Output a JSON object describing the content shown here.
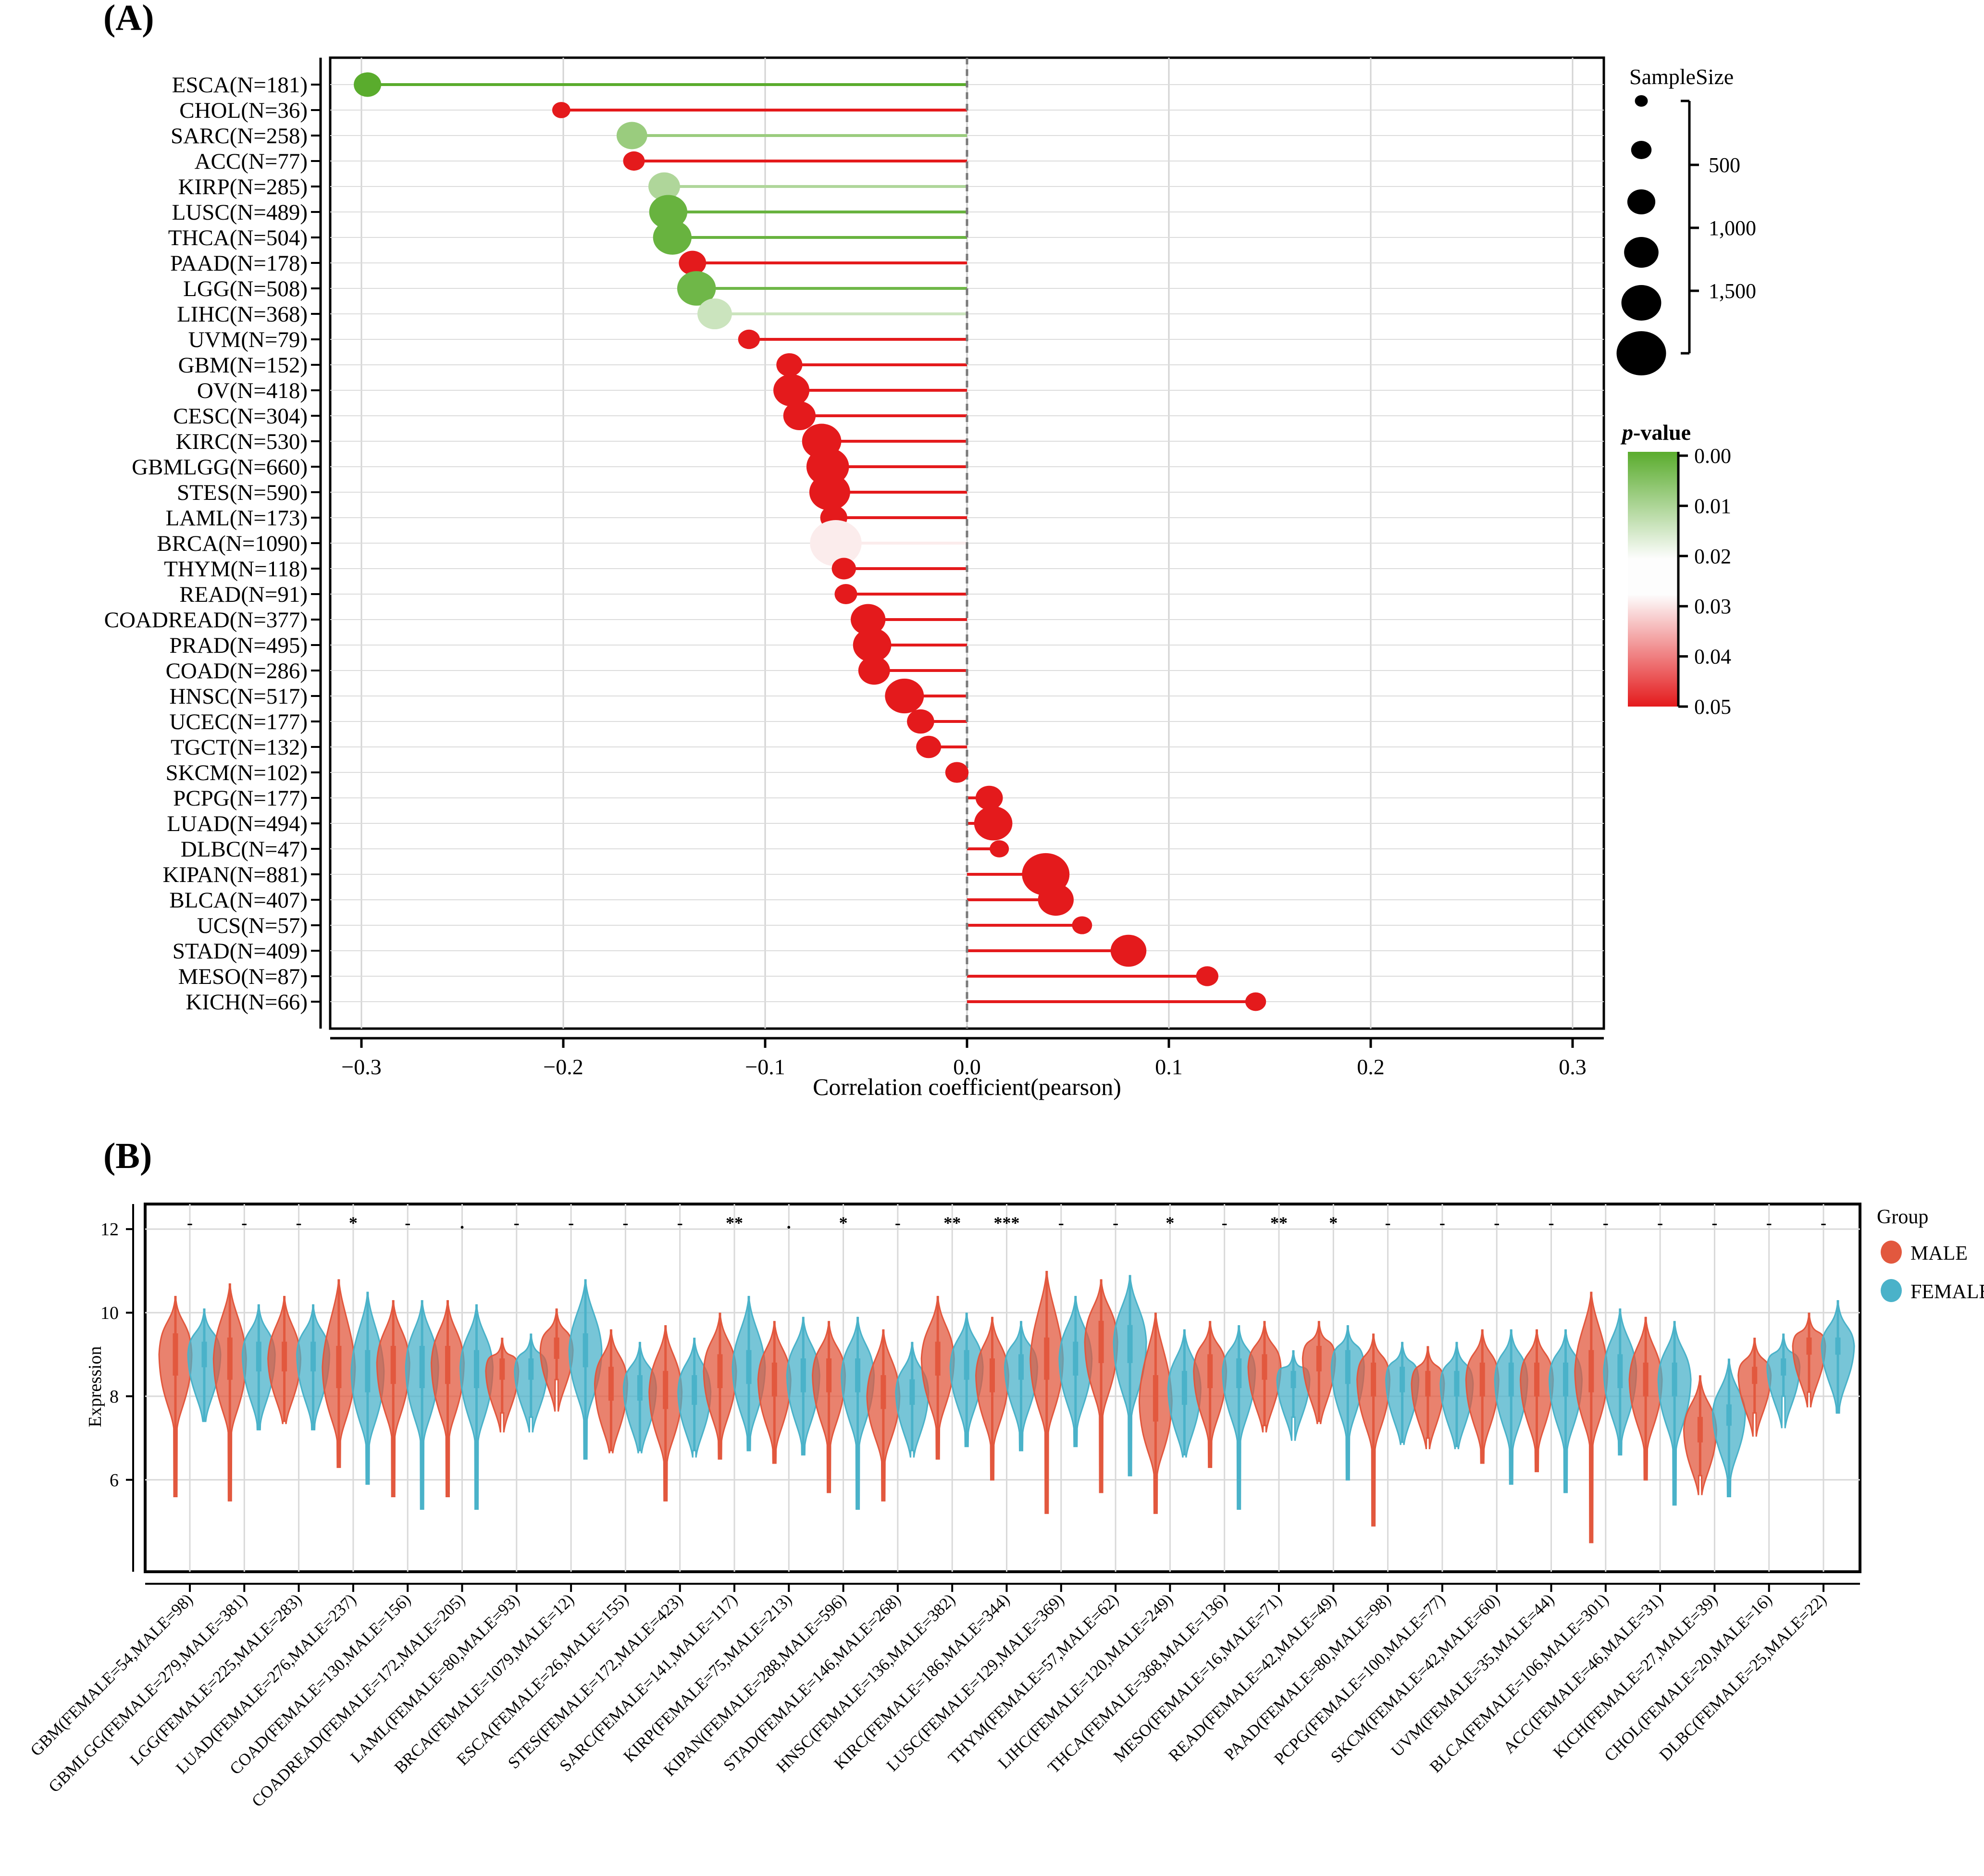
{
  "panels": {
    "a_label": "(A)",
    "b_label": "(B)"
  },
  "chart_data": [
    {
      "type": "scatter",
      "subtype": "lollipop",
      "panel": "(A)",
      "xlabel": "Correlation coefficient(pearson)",
      "xlim": [
        -0.31,
        0.32
      ],
      "xticks": [
        -0.3,
        -0.2,
        -0.1,
        0.0,
        0.1,
        0.2,
        0.3
      ],
      "xtick_labels": [
        "−0.3",
        "−0.2",
        "−0.1",
        "0.0",
        "0.1",
        "0.2",
        "0.3"
      ],
      "grid": true,
      "reference_line": 0.0,
      "legend_placement": "right",
      "size_legend": {
        "title": "SampleSize",
        "tick_labels": [
          "500",
          "1,000",
          "1,500"
        ]
      },
      "color_legend": {
        "title_symbol": "p",
        "title_text": "-value",
        "tick_labels": [
          "0.00",
          "0.01",
          "0.02",
          "0.03",
          "0.04",
          "0.05"
        ],
        "low_color": "#5aac2d",
        "mid_color": "#fdfdfd",
        "high_color": "#e41a1c"
      },
      "points": [
        {
          "label": "ESCA(N=181)",
          "n": 181,
          "r": -0.297,
          "p": 0.0
        },
        {
          "label": "CHOL(N=36)",
          "n": 36,
          "r": -0.201,
          "p": 0.05
        },
        {
          "label": "SARC(N=258)",
          "n": 258,
          "r": -0.166,
          "p": 0.009
        },
        {
          "label": "ACC(N=77)",
          "n": 77,
          "r": -0.165,
          "p": 0.05
        },
        {
          "label": "KIRP(N=285)",
          "n": 285,
          "r": -0.15,
          "p": 0.012
        },
        {
          "label": "LUSC(N=489)",
          "n": 489,
          "r": -0.148,
          "p": 0.002
        },
        {
          "label": "THCA(N=504)",
          "n": 504,
          "r": -0.146,
          "p": 0.002
        },
        {
          "label": "PAAD(N=178)",
          "n": 178,
          "r": -0.136,
          "p": 0.05
        },
        {
          "label": "LGG(N=508)",
          "n": 508,
          "r": -0.134,
          "p": 0.003
        },
        {
          "label": "LIHC(N=368)",
          "n": 368,
          "r": -0.125,
          "p": 0.016
        },
        {
          "label": "UVM(N=79)",
          "n": 79,
          "r": -0.108,
          "p": 0.05
        },
        {
          "label": "GBM(N=152)",
          "n": 152,
          "r": -0.088,
          "p": 0.05
        },
        {
          "label": "OV(N=418)",
          "n": 418,
          "r": -0.087,
          "p": 0.05
        },
        {
          "label": "CESC(N=304)",
          "n": 304,
          "r": -0.083,
          "p": 0.05
        },
        {
          "label": "KIRC(N=530)",
          "n": 530,
          "r": -0.072,
          "p": 0.05
        },
        {
          "label": "GBMLGG(N=660)",
          "n": 660,
          "r": -0.069,
          "p": 0.05
        },
        {
          "label": "STES(N=590)",
          "n": 590,
          "r": -0.068,
          "p": 0.05
        },
        {
          "label": "LAML(N=173)",
          "n": 173,
          "r": -0.066,
          "p": 0.05
        },
        {
          "label": "BRCA(N=1090)",
          "n": 1090,
          "r": -0.065,
          "p": 0.025
        },
        {
          "label": "THYM(N=118)",
          "n": 118,
          "r": -0.061,
          "p": 0.05
        },
        {
          "label": "READ(N=91)",
          "n": 91,
          "r": -0.06,
          "p": 0.05
        },
        {
          "label": "COADREAD(N=377)",
          "n": 377,
          "r": -0.049,
          "p": 0.05
        },
        {
          "label": "PRAD(N=495)",
          "n": 495,
          "r": -0.047,
          "p": 0.05
        },
        {
          "label": "COAD(N=286)",
          "n": 286,
          "r": -0.046,
          "p": 0.05
        },
        {
          "label": "HNSC(N=517)",
          "n": 517,
          "r": -0.031,
          "p": 0.05
        },
        {
          "label": "UCEC(N=177)",
          "n": 177,
          "r": -0.023,
          "p": 0.05
        },
        {
          "label": "TGCT(N=132)",
          "n": 132,
          "r": -0.019,
          "p": 0.05
        },
        {
          "label": "SKCM(N=102)",
          "n": 102,
          "r": -0.005,
          "p": 0.05
        },
        {
          "label": "PCPG(N=177)",
          "n": 177,
          "r": 0.011,
          "p": 0.05
        },
        {
          "label": "LUAD(N=494)",
          "n": 494,
          "r": 0.013,
          "p": 0.05
        },
        {
          "label": "DLBC(N=47)",
          "n": 47,
          "r": 0.016,
          "p": 0.05
        },
        {
          "label": "KIPAN(N=881)",
          "n": 881,
          "r": 0.039,
          "p": 0.05
        },
        {
          "label": "BLCA(N=407)",
          "n": 407,
          "r": 0.044,
          "p": 0.05
        },
        {
          "label": "UCS(N=57)",
          "n": 57,
          "r": 0.057,
          "p": 0.05
        },
        {
          "label": "STAD(N=409)",
          "n": 409,
          "r": 0.08,
          "p": 0.05
        },
        {
          "label": "MESO(N=87)",
          "n": 87,
          "r": 0.119,
          "p": 0.05
        },
        {
          "label": "KICH(N=66)",
          "n": 66,
          "r": 0.143,
          "p": 0.05
        }
      ]
    },
    {
      "type": "violin",
      "panel": "(B)",
      "ylabel": "Expression",
      "ylim": [
        3.8,
        12.6
      ],
      "yticks": [
        6,
        8,
        10,
        12
      ],
      "grid": true,
      "legend_placement": "right",
      "legend": {
        "title": "Group",
        "series": [
          {
            "name": "MALE",
            "color": "#e2583e"
          },
          {
            "name": "FEMALE",
            "color": "#4ab2c9"
          }
        ]
      },
      "groups": [
        {
          "label": "GBM(FEMALE=54,MALE=98)",
          "sig": "-",
          "male": {
            "median": 9.0,
            "min": 5.6,
            "max": 10.4,
            "q1": 8.5,
            "q3": 9.5
          },
          "female": {
            "median": 9.0,
            "min": 7.4,
            "max": 10.1,
            "q1": 8.7,
            "q3": 9.3
          }
        },
        {
          "label": "GBMLGG(FEMALE=279,MALE=381)",
          "sig": "-",
          "male": {
            "median": 8.9,
            "min": 5.5,
            "max": 10.7,
            "q1": 8.4,
            "q3": 9.4
          },
          "female": {
            "median": 9.0,
            "min": 7.2,
            "max": 10.2,
            "q1": 8.6,
            "q3": 9.3
          }
        },
        {
          "label": "LGG(FEMALE=225,MALE=283)",
          "sig": "-",
          "male": {
            "median": 8.9,
            "min": 7.4,
            "max": 10.4,
            "q1": 8.6,
            "q3": 9.3
          },
          "female": {
            "median": 9.0,
            "min": 7.2,
            "max": 10.2,
            "q1": 8.6,
            "q3": 9.3
          }
        },
        {
          "label": "LUAD(FEMALE=276,MALE=237)",
          "sig": "*",
          "male": {
            "median": 8.7,
            "min": 6.3,
            "max": 10.8,
            "q1": 8.2,
            "q3": 9.2
          },
          "female": {
            "median": 8.6,
            "min": 5.9,
            "max": 10.5,
            "q1": 8.1,
            "q3": 9.1
          }
        },
        {
          "label": "COAD(FEMALE=130,MALE=156)",
          "sig": "-",
          "male": {
            "median": 8.8,
            "min": 5.6,
            "max": 10.3,
            "q1": 8.3,
            "q3": 9.2
          },
          "female": {
            "median": 8.7,
            "min": 5.3,
            "max": 10.3,
            "q1": 8.2,
            "q3": 9.2
          }
        },
        {
          "label": "COADREAD(FEMALE=172,MALE=205)",
          "sig": ".",
          "male": {
            "median": 8.8,
            "min": 5.6,
            "max": 10.3,
            "q1": 8.3,
            "q3": 9.2
          },
          "female": {
            "median": 8.7,
            "min": 5.3,
            "max": 10.2,
            "q1": 8.2,
            "q3": 9.1
          }
        },
        {
          "label": "LAML(FEMALE=80,MALE=93)",
          "sig": "-",
          "male": {
            "median": 8.6,
            "min": 7.6,
            "max": 9.4,
            "q1": 8.4,
            "q3": 8.9
          },
          "female": {
            "median": 8.6,
            "min": 7.5,
            "max": 9.5,
            "q1": 8.4,
            "q3": 8.9
          }
        },
        {
          "label": "BRCA(FEMALE=1079,MALE=12)",
          "sig": "-",
          "male": {
            "median": 9.1,
            "min": 8.4,
            "max": 10.1,
            "q1": 8.9,
            "q3": 9.4
          },
          "female": {
            "median": 9.1,
            "min": 6.5,
            "max": 10.8,
            "q1": 8.7,
            "q3": 9.5
          }
        },
        {
          "label": "ESCA(FEMALE=26,MALE=155)",
          "sig": "-",
          "male": {
            "median": 8.3,
            "min": 6.7,
            "max": 9.6,
            "q1": 7.9,
            "q3": 8.7
          },
          "female": {
            "median": 8.2,
            "min": 6.7,
            "max": 9.3,
            "q1": 7.9,
            "q3": 8.5
          }
        },
        {
          "label": "STES(FEMALE=172,MALE=423)",
          "sig": "-",
          "male": {
            "median": 8.1,
            "min": 5.5,
            "max": 9.7,
            "q1": 7.7,
            "q3": 8.6
          },
          "female": {
            "median": 8.1,
            "min": 6.7,
            "max": 9.4,
            "q1": 7.8,
            "q3": 8.5
          }
        },
        {
          "label": "SARC(FEMALE=141,MALE=117)",
          "sig": "**",
          "male": {
            "median": 8.6,
            "min": 6.5,
            "max": 10.0,
            "q1": 8.2,
            "q3": 9.0
          },
          "female": {
            "median": 8.7,
            "min": 6.7,
            "max": 10.4,
            "q1": 8.3,
            "q3": 9.1
          }
        },
        {
          "label": "KIRP(FEMALE=75,MALE=213)",
          "sig": ".",
          "male": {
            "median": 8.4,
            "min": 6.4,
            "max": 9.8,
            "q1": 8.0,
            "q3": 8.8
          },
          "female": {
            "median": 8.5,
            "min": 6.6,
            "max": 9.9,
            "q1": 8.1,
            "q3": 8.9
          }
        },
        {
          "label": "KIPAN(FEMALE=288,MALE=596)",
          "sig": "*",
          "male": {
            "median": 8.5,
            "min": 5.7,
            "max": 9.8,
            "q1": 8.1,
            "q3": 8.9
          },
          "female": {
            "median": 8.5,
            "min": 5.3,
            "max": 9.9,
            "q1": 8.1,
            "q3": 8.9
          }
        },
        {
          "label": "STAD(FEMALE=146,MALE=268)",
          "sig": "-",
          "male": {
            "median": 8.0,
            "min": 5.5,
            "max": 9.6,
            "q1": 7.7,
            "q3": 8.5
          },
          "female": {
            "median": 8.1,
            "min": 6.7,
            "max": 9.3,
            "q1": 7.8,
            "q3": 8.4
          }
        },
        {
          "label": "HNSC(FEMALE=136,MALE=382)",
          "sig": "**",
          "male": {
            "median": 8.9,
            "min": 6.5,
            "max": 10.4,
            "q1": 8.5,
            "q3": 9.3
          },
          "female": {
            "median": 8.7,
            "min": 6.8,
            "max": 10.0,
            "q1": 8.4,
            "q3": 9.1
          }
        },
        {
          "label": "KIRC(FEMALE=186,MALE=344)",
          "sig": "***",
          "male": {
            "median": 8.5,
            "min": 6.0,
            "max": 9.9,
            "q1": 8.1,
            "q3": 8.9
          },
          "female": {
            "median": 8.7,
            "min": 6.7,
            "max": 9.8,
            "q1": 8.4,
            "q3": 9.0
          }
        },
        {
          "label": "LUSC(FEMALE=129,MALE=369)",
          "sig": "-",
          "male": {
            "median": 8.9,
            "min": 5.2,
            "max": 11.0,
            "q1": 8.4,
            "q3": 9.4
          },
          "female": {
            "median": 8.9,
            "min": 6.8,
            "max": 10.4,
            "q1": 8.5,
            "q3": 9.3
          }
        },
        {
          "label": "THYM(FEMALE=57,MALE=62)",
          "sig": "-",
          "male": {
            "median": 9.3,
            "min": 5.7,
            "max": 10.8,
            "q1": 8.8,
            "q3": 9.8
          },
          "female": {
            "median": 9.3,
            "min": 6.1,
            "max": 10.9,
            "q1": 8.8,
            "q3": 9.7
          }
        },
        {
          "label": "LIHC(FEMALE=120,MALE=249)",
          "sig": "*",
          "male": {
            "median": 7.9,
            "min": 5.2,
            "max": 10.0,
            "q1": 7.4,
            "q3": 8.5
          },
          "female": {
            "median": 8.2,
            "min": 6.6,
            "max": 9.6,
            "q1": 7.8,
            "q3": 8.6
          }
        },
        {
          "label": "THCA(FEMALE=368,MALE=136)",
          "sig": "-",
          "male": {
            "median": 8.6,
            "min": 6.3,
            "max": 9.8,
            "q1": 8.2,
            "q3": 9.0
          },
          "female": {
            "median": 8.6,
            "min": 5.3,
            "max": 9.7,
            "q1": 8.2,
            "q3": 8.9
          }
        },
        {
          "label": "MESO(FEMALE=16,MALE=71)",
          "sig": "**",
          "male": {
            "median": 8.7,
            "min": 7.3,
            "max": 9.8,
            "q1": 8.4,
            "q3": 9.0
          },
          "female": {
            "median": 8.4,
            "min": 7.5,
            "max": 9.1,
            "q1": 8.2,
            "q3": 8.6
          }
        },
        {
          "label": "READ(FEMALE=42,MALE=49)",
          "sig": "*",
          "male": {
            "median": 8.9,
            "min": 7.4,
            "max": 9.8,
            "q1": 8.6,
            "q3": 9.2
          },
          "female": {
            "median": 8.7,
            "min": 6.0,
            "max": 9.7,
            "q1": 8.3,
            "q3": 9.1
          }
        },
        {
          "label": "PAAD(FEMALE=80,MALE=98)",
          "sig": "-",
          "male": {
            "median": 8.4,
            "min": 4.9,
            "max": 9.5,
            "q1": 8.0,
            "q3": 8.8
          },
          "female": {
            "median": 8.4,
            "min": 6.9,
            "max": 9.3,
            "q1": 8.1,
            "q3": 8.7
          }
        },
        {
          "label": "PCPG(FEMALE=100,MALE=77)",
          "sig": "-",
          "male": {
            "median": 8.3,
            "min": 7.0,
            "max": 9.2,
            "q1": 8.0,
            "q3": 8.6
          },
          "female": {
            "median": 8.3,
            "min": 6.8,
            "max": 9.3,
            "q1": 8.0,
            "q3": 8.6
          }
        },
        {
          "label": "SKCM(FEMALE=42,MALE=60)",
          "sig": "-",
          "male": {
            "median": 8.4,
            "min": 6.4,
            "max": 9.6,
            "q1": 8.0,
            "q3": 8.8
          },
          "female": {
            "median": 8.4,
            "min": 5.9,
            "max": 9.6,
            "q1": 8.0,
            "q3": 8.8
          }
        },
        {
          "label": "UVM(FEMALE=35,MALE=44)",
          "sig": "-",
          "male": {
            "median": 8.4,
            "min": 6.2,
            "max": 9.6,
            "q1": 8.0,
            "q3": 8.8
          },
          "female": {
            "median": 8.4,
            "min": 5.7,
            "max": 9.6,
            "q1": 8.0,
            "q3": 8.8
          }
        },
        {
          "label": "BLCA(FEMALE=106,MALE=301)",
          "sig": "-",
          "male": {
            "median": 8.6,
            "min": 4.5,
            "max": 10.5,
            "q1": 8.1,
            "q3": 9.1
          },
          "female": {
            "median": 8.6,
            "min": 6.6,
            "max": 10.1,
            "q1": 8.2,
            "q3": 9.0
          }
        },
        {
          "label": "ACC(FEMALE=46,MALE=31)",
          "sig": "-",
          "male": {
            "median": 8.4,
            "min": 6.0,
            "max": 9.9,
            "q1": 8.0,
            "q3": 8.8
          },
          "female": {
            "median": 8.4,
            "min": 5.4,
            "max": 9.8,
            "q1": 8.0,
            "q3": 8.8
          }
        },
        {
          "label": "KICH(FEMALE=27,MALE=39)",
          "sig": "-",
          "male": {
            "median": 7.2,
            "min": 6.1,
            "max": 8.5,
            "q1": 6.9,
            "q3": 7.5
          },
          "female": {
            "median": 7.6,
            "min": 5.6,
            "max": 8.9,
            "q1": 7.3,
            "q3": 7.8
          }
        },
        {
          "label": "CHOL(FEMALE=20,MALE=16)",
          "sig": "-",
          "male": {
            "median": 8.5,
            "min": 7.6,
            "max": 9.4,
            "q1": 8.3,
            "q3": 8.7
          },
          "female": {
            "median": 8.7,
            "min": 8.0,
            "max": 9.5,
            "q1": 8.5,
            "q3": 8.9
          }
        },
        {
          "label": "DLBC(FEMALE=25,MALE=22)",
          "sig": "-",
          "male": {
            "median": 9.2,
            "min": 8.1,
            "max": 10.0,
            "q1": 9.0,
            "q3": 9.4
          },
          "female": {
            "median": 9.2,
            "min": 7.6,
            "max": 10.3,
            "q1": 9.0,
            "q3": 9.4
          }
        }
      ]
    }
  ]
}
